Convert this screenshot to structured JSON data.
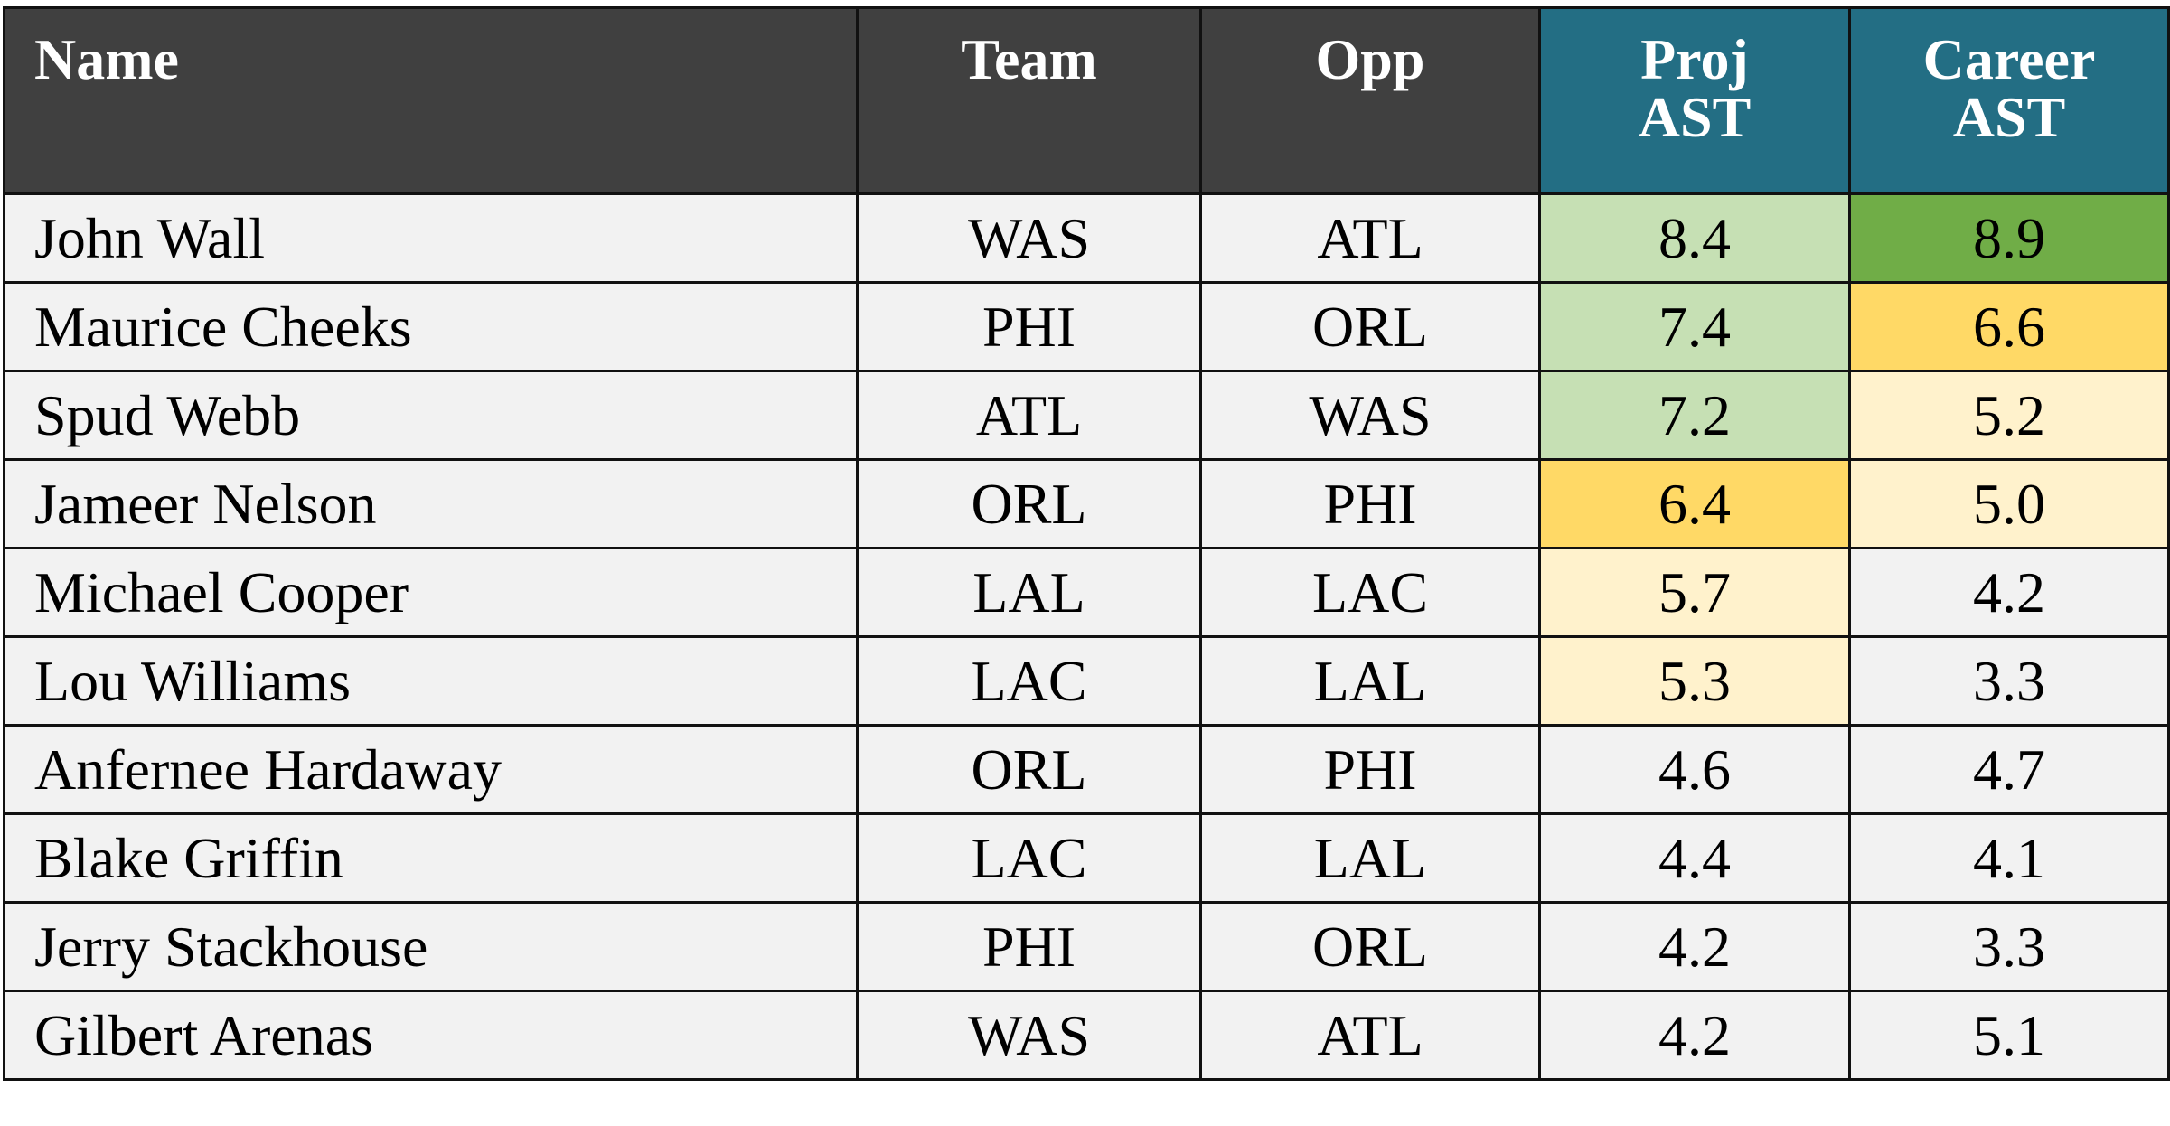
{
  "table": {
    "header": [
      "Name",
      "Team",
      "Opp",
      "Proj\nAST",
      "Career\nAST"
    ],
    "rows": [
      [
        "John Wall",
        "WAS",
        "ATL",
        "8.4",
        "8.9"
      ],
      [
        "Maurice Cheeks",
        "PHI",
        "ORL",
        "7.4",
        "6.6"
      ],
      [
        "Spud Webb",
        "ATL",
        "WAS",
        "7.2",
        "5.2"
      ],
      [
        "Jameer Nelson",
        "ORL",
        "PHI",
        "6.4",
        "5.0"
      ],
      [
        "Michael Cooper",
        "LAL",
        "LAC",
        "5.7",
        "4.2"
      ],
      [
        "Lou Williams",
        "LAC",
        "LAL",
        "5.3",
        "3.3"
      ],
      [
        "Anfernee Hardaway",
        "ORL",
        "PHI",
        "4.6",
        "4.7"
      ],
      [
        "Blake Griffin",
        "LAC",
        "LAL",
        "4.4",
        "4.1"
      ],
      [
        "Jerry Stackhouse",
        "PHI",
        "ORL",
        "4.2",
        "3.3"
      ],
      [
        "Gilbert Arenas",
        "WAS",
        "ATL",
        "4.2",
        "5.1"
      ]
    ]
  }
}
